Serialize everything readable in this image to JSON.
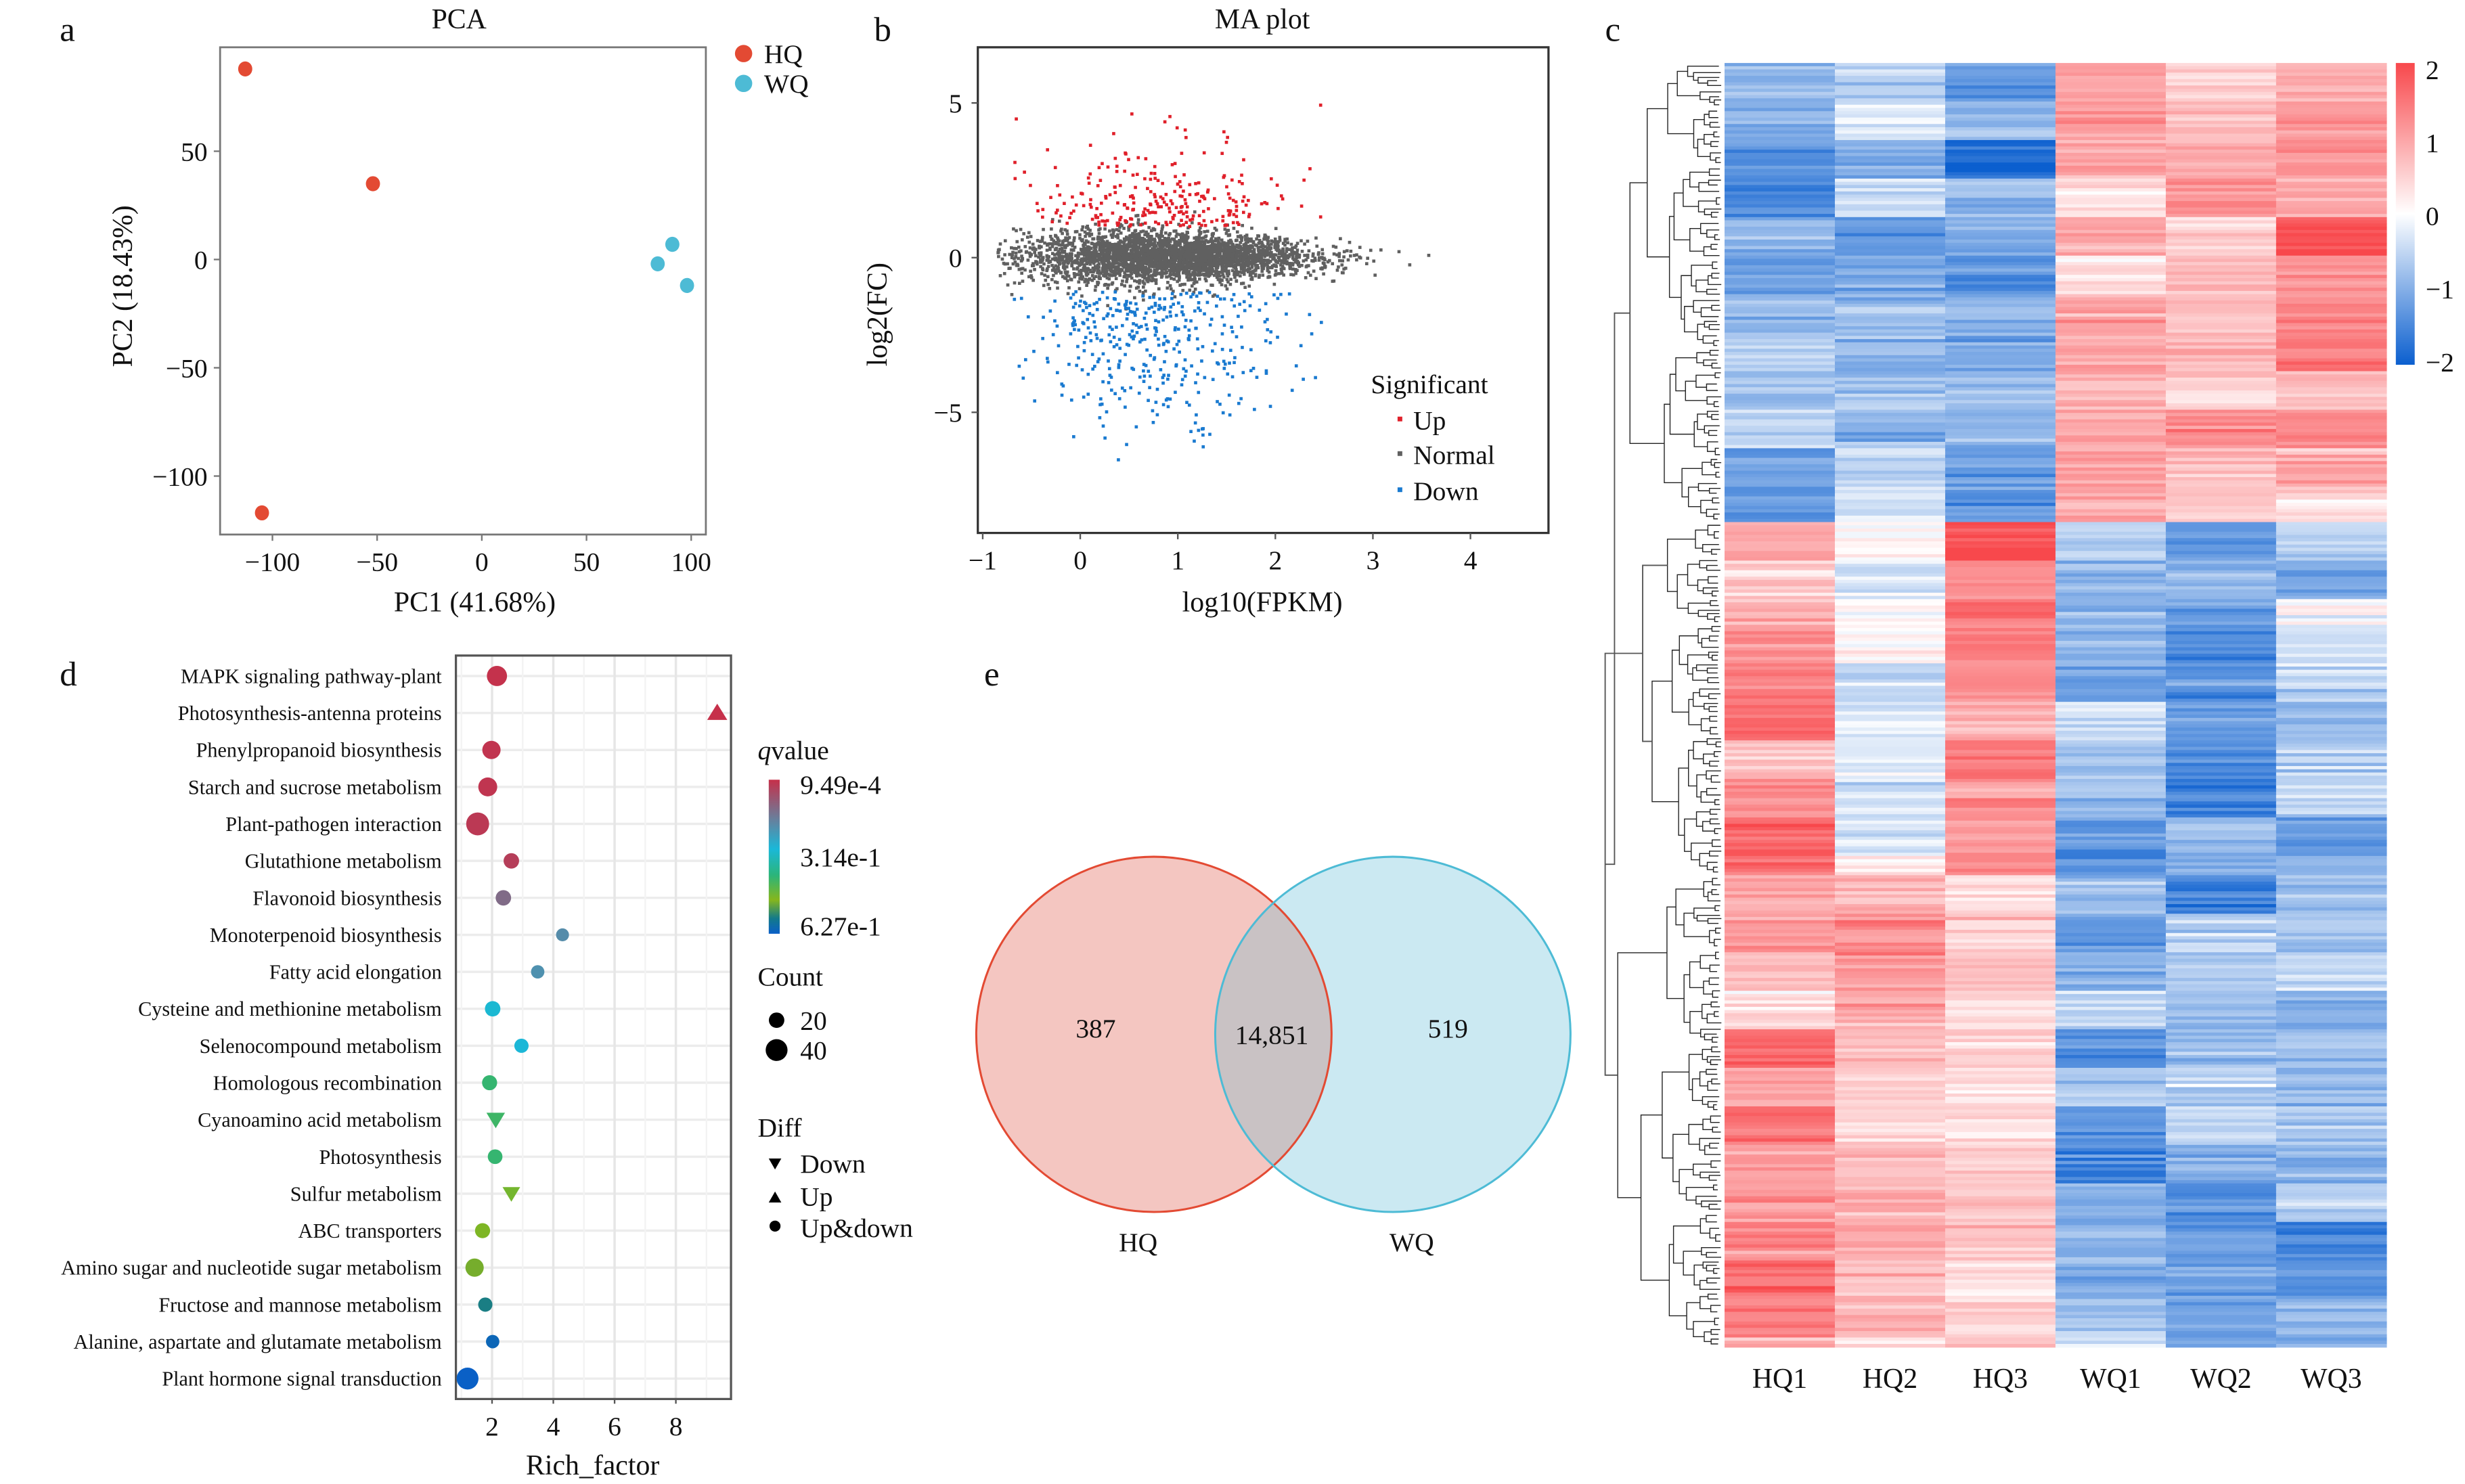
{
  "panels": {
    "a": "a",
    "b": "b",
    "c": "c",
    "d": "d",
    "e": "e"
  },
  "chart_data": [
    {
      "panel": "a",
      "type": "scatter",
      "title": "PCA",
      "xlabel": "PC1 (41.68%)",
      "ylabel": "PC2 (18.43%)",
      "xlim": [
        -125,
        107
      ],
      "ylim": [
        -127,
        98
      ],
      "xticks": [
        "−100",
        "−50",
        "0",
        "50",
        "100"
      ],
      "xtick_values": [
        -100,
        -50,
        0,
        50,
        100
      ],
      "yticks": [
        "50",
        "0",
        "−50",
        "−100"
      ],
      "ytick_values": [
        50,
        0,
        -50,
        -100
      ],
      "legend_position": "top-right outside",
      "series": [
        {
          "name": "HQ",
          "color": "#e34a33",
          "points": [
            [
              -113,
              88
            ],
            [
              -52,
              35
            ],
            [
              -105,
              -117
            ]
          ]
        },
        {
          "name": "WQ",
          "color": "#4dbbd5",
          "points": [
            [
              84,
              -2
            ],
            [
              91,
              7
            ],
            [
              98,
              -12
            ]
          ]
        }
      ]
    },
    {
      "panel": "b",
      "type": "scatter",
      "title": "MA plot",
      "xlabel": "log10(FPKM)",
      "ylabel": "log2(FC)",
      "xlim": [
        -1.05,
        4.8
      ],
      "ylim": [
        -8.9,
        6.8
      ],
      "xticks": [
        "−1",
        "0",
        "1",
        "2",
        "3",
        "4"
      ],
      "xtick_values": [
        -1,
        0,
        1,
        2,
        3,
        4
      ],
      "yticks": [
        "5",
        "0",
        "−5"
      ],
      "ytick_values": [
        5,
        0,
        -5
      ],
      "legend_title": "Significant",
      "legend_position": "bottom-right",
      "series": [
        {
          "name": "Up",
          "color": "#e0202a",
          "approx_count": 260,
          "x_range": [
            -0.7,
            3.1
          ],
          "y_range": [
            1,
            6.1
          ]
        },
        {
          "name": "Normal",
          "color": "#606060",
          "approx_count": 3200,
          "x_range": [
            -0.85,
            4.5
          ],
          "y_range": [
            -1.5,
            1.5
          ]
        },
        {
          "name": "Down",
          "color": "#1a7ad0",
          "approx_count": 380,
          "x_range": [
            -0.8,
            3.7
          ],
          "y_range": [
            -8.6,
            -1
          ]
        }
      ]
    },
    {
      "panel": "c",
      "type": "heatmap",
      "columns": [
        "HQ1",
        "HQ2",
        "HQ3",
        "WQ1",
        "WQ2",
        "WQ3"
      ],
      "color_scale": {
        "min": -2,
        "max": 2,
        "low": "#0b5fcf",
        "mid": "#ffffff",
        "high": "#f8484c"
      },
      "colorbar_ticks": [
        "2",
        "1",
        "0",
        "−1",
        "−2"
      ],
      "row_clusters": [
        {
          "rows": 143,
          "means": [
            -1.0,
            -0.9,
            -1.2,
            0.9,
            0.8,
            1.0
          ]
        },
        {
          "rows": 32,
          "means": [
            0.8,
            0.0,
            1.6,
            -0.9,
            -0.9,
            -0.7
          ]
        },
        {
          "rows": 78,
          "means": [
            1.2,
            -0.1,
            1.4,
            -0.9,
            -1.2,
            -0.8
          ]
        },
        {
          "rows": 147,
          "means": [
            1.2,
            0.7,
            0.6,
            -1.0,
            -1.0,
            -1.0
          ]
        }
      ]
    },
    {
      "panel": "d",
      "type": "scatter",
      "xlabel": "Rich_factor",
      "xlim": [
        0.82,
        9.8
      ],
      "xticks": [
        "2",
        "4",
        "6",
        "8"
      ],
      "xtick_values": [
        2,
        4,
        6,
        8
      ],
      "grid": true,
      "color_legend": {
        "title_italic": "q",
        "title_rest": "value",
        "labels": [
          "9.49e-4",
          "3.14e-1",
          "6.27e-1"
        ],
        "min": 0.000949,
        "max": 0.627,
        "stops": [
          [
            "0",
            "#c6304a"
          ],
          [
            "0.25",
            "#6a7d9a"
          ],
          [
            "0.45",
            "#1ab8d8"
          ],
          [
            "0.62",
            "#2bb57a"
          ],
          [
            "0.78",
            "#86b61c"
          ],
          [
            "0.9",
            "#137a8a"
          ],
          [
            "1",
            "#0a5fc8"
          ]
        ]
      },
      "size_legend": {
        "title": "Count",
        "values": [
          20,
          40
        ],
        "labels": [
          "20",
          "40"
        ]
      },
      "shape_legend": {
        "title": "Diff",
        "items": [
          {
            "shape": "down",
            "label": "Down"
          },
          {
            "shape": "up",
            "label": "Up"
          },
          {
            "shape": "circle",
            "label": "Up&down"
          }
        ]
      },
      "pathways": [
        {
          "name": "MAPK signaling pathway-plant",
          "rich_factor": 2.16,
          "count": 34,
          "qvalue": 0.005,
          "diff": "circle"
        },
        {
          "name": "Photosynthesis-antenna proteins",
          "rich_factor": 9.35,
          "count": 20,
          "qvalue": 0.001,
          "diff": "up"
        },
        {
          "name": "Phenylpropanoid biosynthesis",
          "rich_factor": 1.98,
          "count": 28,
          "qvalue": 0.01,
          "diff": "circle"
        },
        {
          "name": "Starch and sucrose metabolism",
          "rich_factor": 1.86,
          "count": 30,
          "qvalue": 0.012,
          "diff": "circle"
        },
        {
          "name": "Plant-pathogen interaction",
          "rich_factor": 1.53,
          "count": 44,
          "qvalue": 0.02,
          "diff": "circle"
        },
        {
          "name": "Glutathione metabolism",
          "rich_factor": 2.63,
          "count": 20,
          "qvalue": 0.03,
          "diff": "circle"
        },
        {
          "name": "Flavonoid biosynthesis",
          "rich_factor": 2.37,
          "count": 20,
          "qvalue": 0.12,
          "diff": "circle"
        },
        {
          "name": "Monoterpenoid biosynthesis",
          "rich_factor": 4.3,
          "count": 14,
          "qvalue": 0.19,
          "diff": "circle"
        },
        {
          "name": "Fatty acid elongation",
          "rich_factor": 3.49,
          "count": 15,
          "qvalue": 0.2,
          "diff": "circle"
        },
        {
          "name": "Cysteine and methionine metabolism",
          "rich_factor": 2.02,
          "count": 20,
          "qvalue": 0.29,
          "diff": "circle"
        },
        {
          "name": "Selenocompound metabolism",
          "rich_factor": 2.96,
          "count": 17,
          "qvalue": 0.28,
          "diff": "circle"
        },
        {
          "name": "Homologous recombination",
          "rich_factor": 1.92,
          "count": 19,
          "qvalue": 0.4,
          "diff": "circle"
        },
        {
          "name": "Cyanoamino acid metabolism",
          "rich_factor": 2.12,
          "count": 20,
          "qvalue": 0.41,
          "diff": "down"
        },
        {
          "name": "Photosynthesis",
          "rich_factor": 2.1,
          "count": 18,
          "qvalue": 0.4,
          "diff": "circle"
        },
        {
          "name": "Sulfur metabolism",
          "rich_factor": 2.63,
          "count": 18,
          "qvalue": 0.47,
          "diff": "down"
        },
        {
          "name": "ABC transporters",
          "rich_factor": 1.69,
          "count": 19,
          "qvalue": 0.48,
          "diff": "circle"
        },
        {
          "name": "Amino sugar and nucleotide sugar metabolism",
          "rich_factor": 1.43,
          "count": 28,
          "qvalue": 0.5,
          "diff": "circle"
        },
        {
          "name": "Fructose and mannose metabolism",
          "rich_factor": 1.78,
          "count": 17,
          "qvalue": 0.56,
          "diff": "circle"
        },
        {
          "name": "Alanine, aspartate and glutamate metabolism",
          "rich_factor": 2.02,
          "count": 15,
          "qvalue": 0.61,
          "diff": "circle"
        },
        {
          "name": "Plant hormone signal transduction",
          "rich_factor": 1.2,
          "count": 40,
          "qvalue": 0.625,
          "diff": "circle"
        }
      ]
    },
    {
      "panel": "e",
      "type": "venn",
      "sets": [
        {
          "name": "HQ",
          "only": "387",
          "fill": "#f4c6c1",
          "stroke": "#e34a33"
        },
        {
          "name": "WQ",
          "only": "519",
          "fill": "#cbe9f2",
          "stroke": "#4dbbd5"
        }
      ],
      "overlap": "14,851",
      "overlap_fill": "#c9c2c4"
    }
  ]
}
